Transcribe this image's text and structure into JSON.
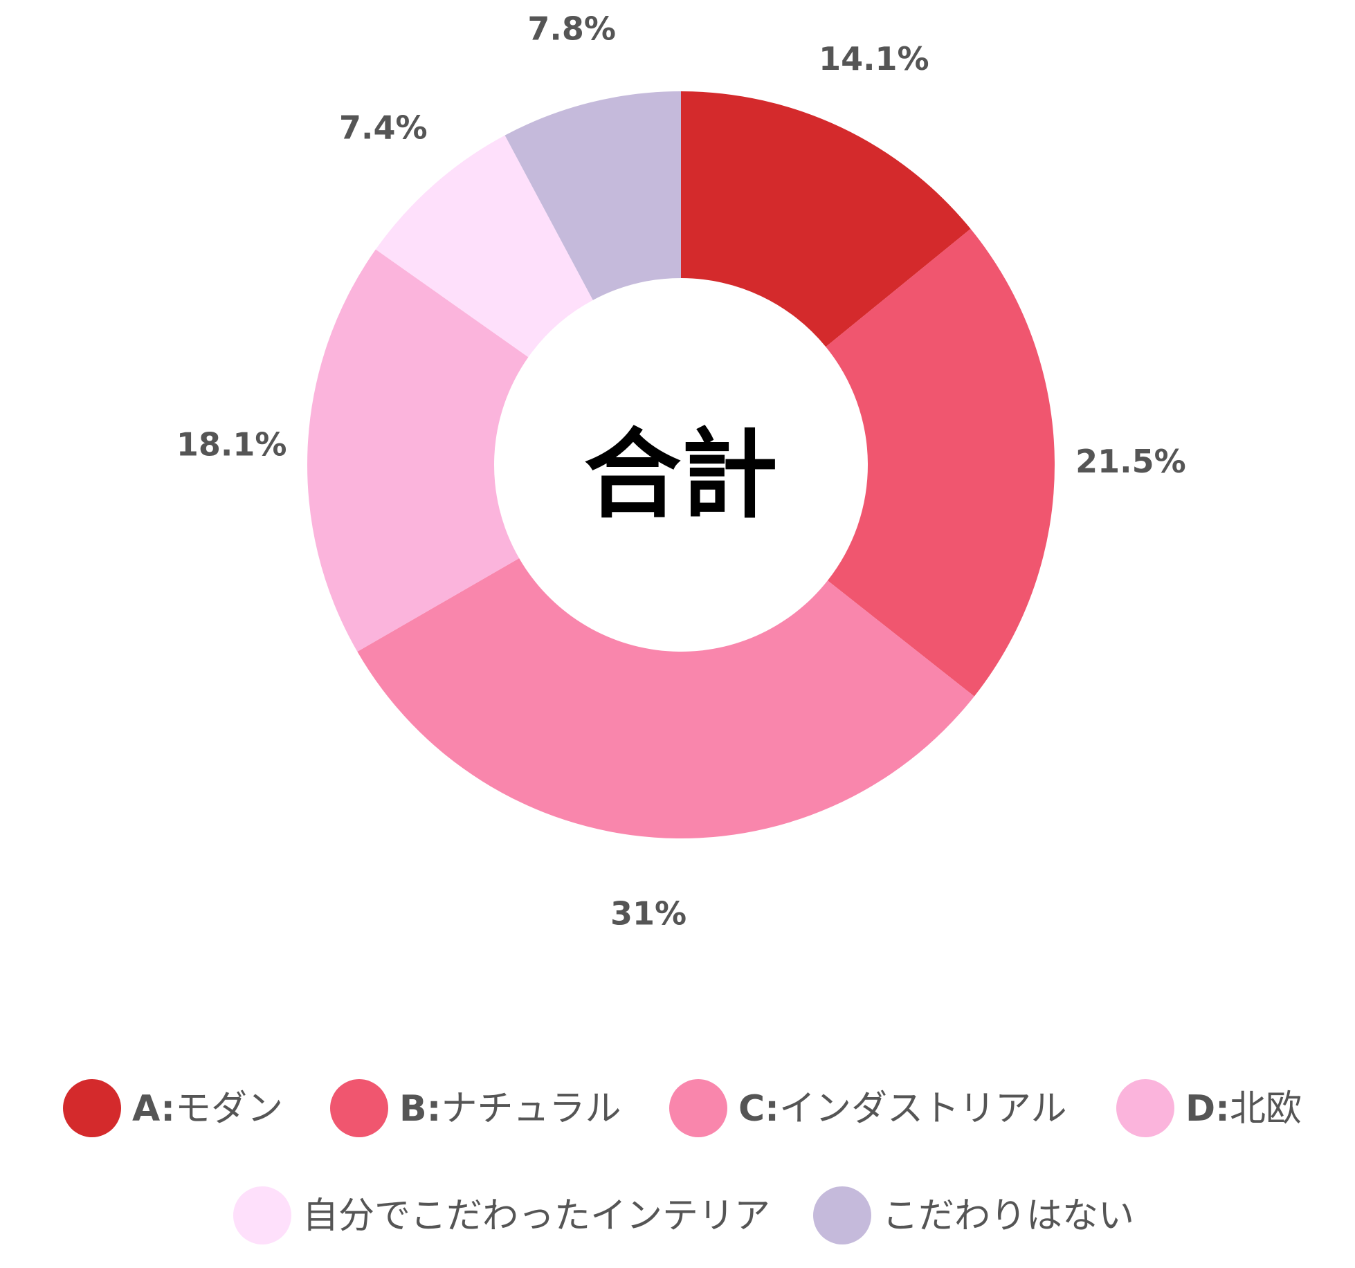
{
  "chart_data": {
    "type": "pie",
    "donut": true,
    "center_label": "合計",
    "categories": [
      "A:モダン",
      "B:ナチュラル",
      "C:インダストリアル",
      "D:北欧",
      "自分でこだわったインテリア",
      "こだわりはない"
    ],
    "values": [
      14.1,
      21.5,
      31,
      18.1,
      7.4,
      7.8
    ],
    "value_labels": [
      "14.1%",
      "21.5%",
      "31%",
      "18.1%",
      "7.4%",
      "7.8%"
    ],
    "legend_entries": [
      {
        "prefix": "A:",
        "text": "モダン",
        "color": "#d42a2c"
      },
      {
        "prefix": "B:",
        "text": "ナチュラル",
        "color": "#f0566f"
      },
      {
        "prefix": "C:",
        "text": "インダストリアル",
        "color": "#f986ac"
      },
      {
        "prefix": "D:",
        "text": "北欧",
        "color": "#fbb4dc"
      },
      {
        "prefix": "",
        "text": "自分でこだわったインテリア",
        "color": "#fee0fb"
      },
      {
        "prefix": "",
        "text": "こだわりはない",
        "color": "#c5badb"
      }
    ],
    "slice_colors": [
      "#d42a2c",
      "#f0566f",
      "#f986ac",
      "#fbb4dc",
      "#fee0fb",
      "#c5badb"
    ],
    "legend_placement": "bottom"
  }
}
